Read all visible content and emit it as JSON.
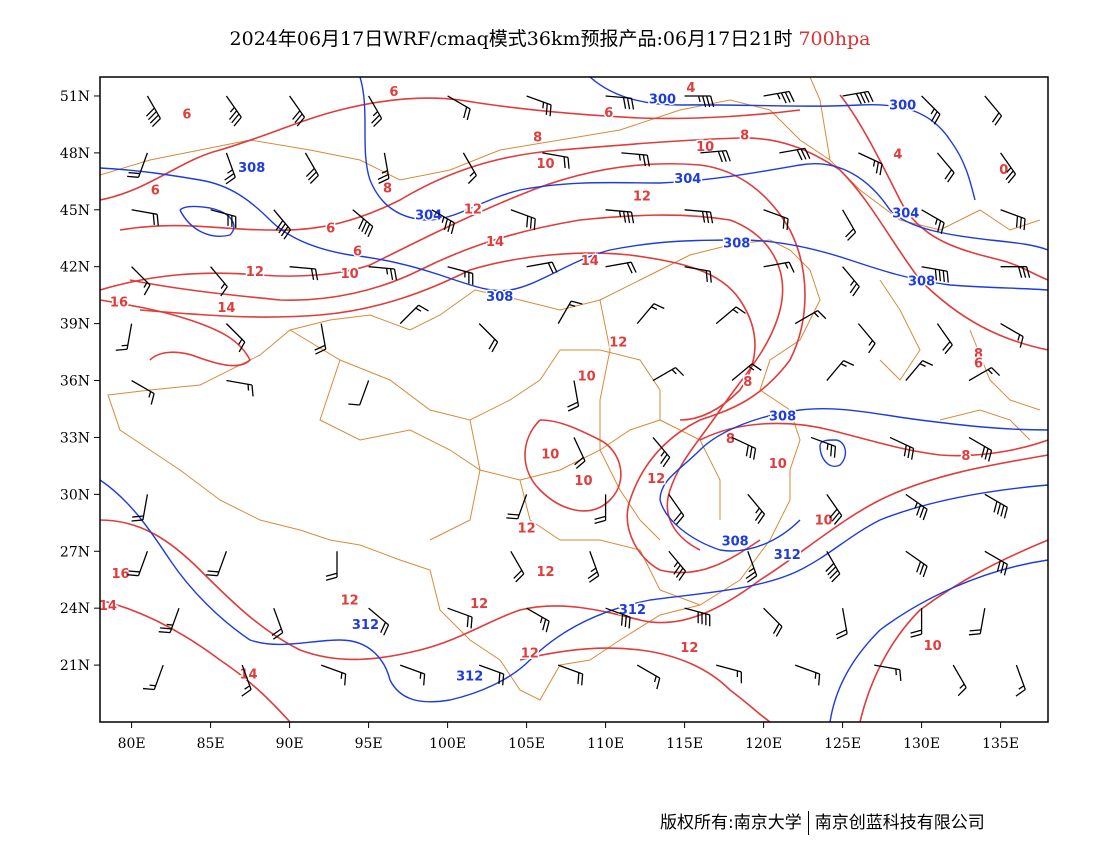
{
  "title": {
    "main": "2024年06月17日WRF/cmaq模式36km预报产品:06月17日21时",
    "level": "700hpa"
  },
  "footer": {
    "copyright": "版权所有:南京大学",
    "company": "南京创蓝科技有限公司"
  },
  "map": {
    "lon_range": [
      78,
      138
    ],
    "lat_range": [
      18,
      52
    ],
    "x_ticks": [
      "80E",
      "85E",
      "90E",
      "95E",
      "100E",
      "105E",
      "110E",
      "115E",
      "120E",
      "125E",
      "130E",
      "135E"
    ],
    "y_ticks": [
      "51N",
      "48N",
      "45N",
      "42N",
      "39N",
      "36N",
      "33N",
      "30N",
      "27N",
      "24N",
      "21N"
    ],
    "colors": {
      "temperature": "#e03c3c",
      "geopotential": "#1e3cdc",
      "boundary": "#d98a3a",
      "barb": "#000000"
    },
    "temperature_labels": [
      {
        "text": "6",
        "lon": 83.5,
        "lat": 49.8
      },
      {
        "text": "6",
        "lon": 96.6,
        "lat": 51.0
      },
      {
        "text": "6",
        "lon": 110.2,
        "lat": 49.9
      },
      {
        "text": "6",
        "lon": 81.5,
        "lat": 45.8
      },
      {
        "text": "6",
        "lon": 92.6,
        "lat": 43.8
      },
      {
        "text": "6",
        "lon": 94.3,
        "lat": 42.6
      },
      {
        "text": "8",
        "lon": 105.7,
        "lat": 48.6
      },
      {
        "text": "8",
        "lon": 96.2,
        "lat": 45.9
      },
      {
        "text": "8",
        "lon": 118.8,
        "lat": 48.7
      },
      {
        "text": "8",
        "lon": 119.0,
        "lat": 35.7
      },
      {
        "text": "8",
        "lon": 117.9,
        "lat": 32.7
      },
      {
        "text": "8",
        "lon": 132.8,
        "lat": 31.8
      },
      {
        "text": "8",
        "lon": 133.6,
        "lat": 37.2
      },
      {
        "text": "6",
        "lon": 133.6,
        "lat": 36.7
      },
      {
        "text": "10",
        "lon": 106.2,
        "lat": 47.2
      },
      {
        "text": "10",
        "lon": 116.3,
        "lat": 48.1
      },
      {
        "text": "10",
        "lon": 93.8,
        "lat": 41.4
      },
      {
        "text": "10",
        "lon": 108.8,
        "lat": 36.0
      },
      {
        "text": "10",
        "lon": 106.5,
        "lat": 31.9
      },
      {
        "text": "10",
        "lon": 108.6,
        "lat": 30.5
      },
      {
        "text": "10",
        "lon": 120.9,
        "lat": 31.4
      },
      {
        "text": "10",
        "lon": 123.8,
        "lat": 28.4
      },
      {
        "text": "10",
        "lon": 130.7,
        "lat": 21.8
      },
      {
        "text": "12",
        "lon": 101.6,
        "lat": 44.8
      },
      {
        "text": "12",
        "lon": 112.3,
        "lat": 45.5
      },
      {
        "text": "12",
        "lon": 87.8,
        "lat": 41.5
      },
      {
        "text": "12",
        "lon": 110.8,
        "lat": 37.8
      },
      {
        "text": "12",
        "lon": 113.2,
        "lat": 30.6
      },
      {
        "text": "12",
        "lon": 105.0,
        "lat": 28.0
      },
      {
        "text": "12",
        "lon": 106.2,
        "lat": 25.7
      },
      {
        "text": "12",
        "lon": 93.8,
        "lat": 24.2
      },
      {
        "text": "12",
        "lon": 102.0,
        "lat": 24.0
      },
      {
        "text": "12",
        "lon": 105.2,
        "lat": 21.4
      },
      {
        "text": "12",
        "lon": 115.3,
        "lat": 21.7
      },
      {
        "text": "14",
        "lon": 103.0,
        "lat": 43.1
      },
      {
        "text": "14",
        "lon": 109.0,
        "lat": 42.1
      },
      {
        "text": "14",
        "lon": 86.0,
        "lat": 39.6
      },
      {
        "text": "14",
        "lon": 87.4,
        "lat": 20.3
      },
      {
        "text": "14",
        "lon": 78.5,
        "lat": 23.9
      },
      {
        "text": "16",
        "lon": 79.2,
        "lat": 39.9
      },
      {
        "text": "16",
        "lon": 79.3,
        "lat": 25.6
      },
      {
        "text": "4",
        "lon": 115.4,
        "lat": 51.2
      },
      {
        "text": "4",
        "lon": 128.5,
        "lat": 47.7
      },
      {
        "text": "0",
        "lon": 135.2,
        "lat": 46.9
      }
    ],
    "geopotential_labels": [
      {
        "text": "300",
        "lon": 113.6,
        "lat": 50.6
      },
      {
        "text": "300",
        "lon": 128.8,
        "lat": 50.3
      },
      {
        "text": "304",
        "lon": 115.2,
        "lat": 46.4
      },
      {
        "text": "304",
        "lon": 98.8,
        "lat": 44.5
      },
      {
        "text": "304",
        "lon": 129.0,
        "lat": 44.6
      },
      {
        "text": "308",
        "lon": 87.6,
        "lat": 47.0
      },
      {
        "text": "308",
        "lon": 118.3,
        "lat": 43.0
      },
      {
        "text": "308",
        "lon": 103.3,
        "lat": 40.2
      },
      {
        "text": "308",
        "lon": 130.0,
        "lat": 41.0
      },
      {
        "text": "308",
        "lon": 121.2,
        "lat": 33.9
      },
      {
        "text": "308",
        "lon": 118.2,
        "lat": 27.3
      },
      {
        "text": "312",
        "lon": 94.8,
        "lat": 22.9
      },
      {
        "text": "312",
        "lon": 111.7,
        "lat": 23.7
      },
      {
        "text": "312",
        "lon": 101.4,
        "lat": 20.2
      },
      {
        "text": "312",
        "lon": 121.5,
        "lat": 26.6
      }
    ],
    "wind_barbs": [
      [
        81,
        51,
        150,
        40
      ],
      [
        86,
        51,
        145,
        35
      ],
      [
        90,
        51,
        145,
        30
      ],
      [
        95,
        51,
        150,
        25
      ],
      [
        100,
        51,
        120,
        20
      ],
      [
        105,
        51,
        110,
        25
      ],
      [
        110,
        51,
        95,
        30
      ],
      [
        115,
        51,
        90,
        35
      ],
      [
        120,
        51,
        80,
        35
      ],
      [
        125,
        51,
        80,
        40
      ],
      [
        130,
        51,
        135,
        25
      ],
      [
        134,
        51,
        140,
        20
      ],
      [
        81,
        48,
        200,
        20
      ],
      [
        86,
        48,
        160,
        25
      ],
      [
        91,
        48,
        150,
        30
      ],
      [
        96,
        48,
        170,
        25
      ],
      [
        101,
        48,
        150,
        15
      ],
      [
        106,
        48,
        100,
        20
      ],
      [
        111,
        48,
        95,
        25
      ],
      [
        116,
        48,
        85,
        30
      ],
      [
        121,
        48,
        80,
        30
      ],
      [
        126,
        48,
        115,
        25
      ],
      [
        131,
        48,
        140,
        20
      ],
      [
        135,
        48,
        145,
        25
      ],
      [
        80,
        45,
        100,
        20
      ],
      [
        85,
        45,
        105,
        30
      ],
      [
        89,
        45,
        140,
        40
      ],
      [
        94,
        45,
        130,
        40
      ],
      [
        99,
        45,
        120,
        35
      ],
      [
        104,
        45,
        110,
        30
      ],
      [
        110,
        45,
        95,
        35
      ],
      [
        115,
        45,
        95,
        30
      ],
      [
        120,
        45,
        110,
        20
      ],
      [
        125,
        45,
        150,
        20
      ],
      [
        130,
        45,
        120,
        25
      ],
      [
        135,
        45,
        110,
        30
      ],
      [
        80,
        42,
        135,
        15
      ],
      [
        85,
        42,
        140,
        15
      ],
      [
        90,
        42,
        95,
        20
      ],
      [
        95,
        42,
        95,
        25
      ],
      [
        100,
        42,
        105,
        25
      ],
      [
        105,
        42,
        80,
        20
      ],
      [
        110,
        42,
        80,
        20
      ],
      [
        115,
        42,
        100,
        20
      ],
      [
        120,
        42,
        80,
        15
      ],
      [
        125,
        42,
        140,
        25
      ],
      [
        130,
        42,
        100,
        40
      ],
      [
        135,
        42,
        90,
        30
      ],
      [
        80,
        39,
        190,
        15
      ],
      [
        86,
        39,
        135,
        15
      ],
      [
        92,
        39,
        170,
        20
      ],
      [
        97,
        39,
        45,
        15
      ],
      [
        102,
        39,
        135,
        20
      ],
      [
        107,
        39,
        30,
        15
      ],
      [
        112,
        39,
        40,
        15
      ],
      [
        117,
        39,
        50,
        15
      ],
      [
        122,
        39,
        60,
        15
      ],
      [
        126,
        39,
        140,
        15
      ],
      [
        131,
        39,
        145,
        20
      ],
      [
        135,
        39,
        120,
        15
      ],
      [
        80,
        36,
        120,
        15
      ],
      [
        86,
        36,
        100,
        15
      ],
      [
        95,
        36,
        200,
        10
      ],
      [
        108,
        36,
        170,
        20
      ],
      [
        113,
        36,
        60,
        15
      ],
      [
        118,
        36,
        50,
        15
      ],
      [
        124,
        36,
        40,
        15
      ],
      [
        129,
        36,
        40,
        15
      ],
      [
        133,
        36,
        60,
        15
      ],
      [
        108,
        33,
        155,
        20
      ],
      [
        113,
        33,
        140,
        25
      ],
      [
        118,
        33,
        115,
        30
      ],
      [
        123,
        33,
        110,
        25
      ],
      [
        128,
        33,
        115,
        30
      ],
      [
        133,
        33,
        120,
        30
      ],
      [
        81,
        30,
        190,
        20
      ],
      [
        105,
        30,
        200,
        20
      ],
      [
        110,
        30,
        180,
        20
      ],
      [
        114,
        30,
        145,
        20
      ],
      [
        119,
        30,
        140,
        25
      ],
      [
        124,
        30,
        145,
        30
      ],
      [
        129,
        30,
        125,
        35
      ],
      [
        134,
        30,
        120,
        40
      ],
      [
        81,
        27,
        200,
        20
      ],
      [
        86,
        27,
        200,
        20
      ],
      [
        93,
        27,
        180,
        20
      ],
      [
        104,
        27,
        150,
        20
      ],
      [
        109,
        27,
        160,
        25
      ],
      [
        114,
        27,
        140,
        35
      ],
      [
        119,
        27,
        160,
        25
      ],
      [
        124,
        27,
        150,
        40
      ],
      [
        129,
        27,
        125,
        30
      ],
      [
        134,
        27,
        120,
        30
      ],
      [
        83,
        24,
        200,
        25
      ],
      [
        89,
        24,
        160,
        20
      ],
      [
        95,
        24,
        130,
        20
      ],
      [
        100,
        24,
        110,
        20
      ],
      [
        105,
        24,
        120,
        25
      ],
      [
        110,
        24,
        110,
        30
      ],
      [
        115,
        24,
        105,
        40
      ],
      [
        120,
        24,
        135,
        20
      ],
      [
        125,
        24,
        170,
        20
      ],
      [
        130,
        24,
        180,
        20
      ],
      [
        134,
        24,
        190,
        20
      ],
      [
        82,
        21,
        200,
        15
      ],
      [
        87,
        21,
        160,
        15
      ],
      [
        92,
        21,
        110,
        15
      ],
      [
        97,
        21,
        110,
        15
      ],
      [
        102,
        21,
        110,
        20
      ],
      [
        107,
        21,
        110,
        20
      ],
      [
        112,
        21,
        120,
        15
      ],
      [
        117,
        21,
        105,
        15
      ],
      [
        122,
        21,
        110,
        15
      ],
      [
        127,
        21,
        100,
        15
      ],
      [
        132,
        21,
        150,
        15
      ],
      [
        136,
        21,
        160,
        15
      ]
    ]
  }
}
